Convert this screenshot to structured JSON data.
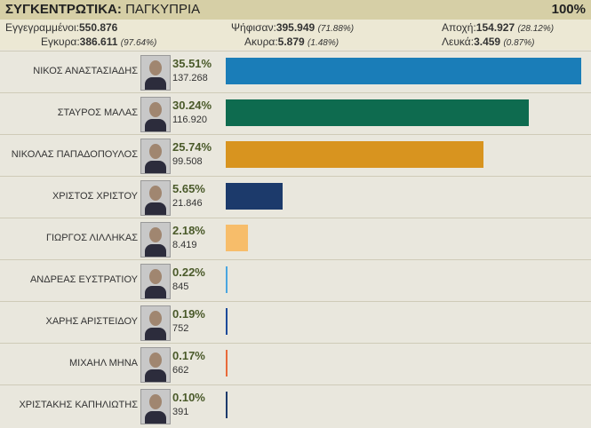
{
  "header": {
    "label": "ΣΥΓΚΕΝΤΡΩΤΙΚΑ:",
    "region": "ΠΑΓΚΥΠΡΙΑ",
    "progress": "100%"
  },
  "stats": {
    "registered_label": "Εγγεγραμμένοι:",
    "registered": "550.876",
    "voted_label": "Ψήφισαν:",
    "voted": "395.949",
    "voted_pct": "(71.88%)",
    "abstention_label": "Αποχή:",
    "abstention": "154.927",
    "abstention_pct": "(28.12%)",
    "valid_label": "Εγκυρα:",
    "valid": "386.611",
    "valid_pct": "(97.64%)",
    "invalid_label": "Ακυρα:",
    "invalid": "5.879",
    "invalid_pct": "(1.48%)",
    "blank_label": "Λευκά:",
    "blank": "3.459",
    "blank_pct": "(0.87%)"
  },
  "candidates": [
    {
      "name": "ΝΙΚΟΣ ΑΝΑΣΤΑΣΙΑΔΗΣ",
      "pct": "35.51%",
      "votes": "137.268",
      "share": 35.51,
      "color": "#1a7db8"
    },
    {
      "name": "ΣΤΑΥΡΟΣ ΜΑΛΑΣ",
      "pct": "30.24%",
      "votes": "116.920",
      "share": 30.24,
      "color": "#0e6b4f"
    },
    {
      "name": "ΝΙΚΟΛΑΣ ΠΑΠΑΔΟΠΟΥΛΟΣ",
      "pct": "25.74%",
      "votes": "99.508",
      "share": 25.74,
      "color": "#d8941f"
    },
    {
      "name": "ΧΡΙΣΤΟΣ ΧΡΙΣΤΟΥ",
      "pct": "5.65%",
      "votes": "21.846",
      "share": 5.65,
      "color": "#1c3a6b"
    },
    {
      "name": "ΓΙΩΡΓΟΣ ΛΙΛΛΗΚΑΣ",
      "pct": "2.18%",
      "votes": "8.419",
      "share": 2.18,
      "color": "#f7bd6a"
    },
    {
      "name": "ΑΝΔΡΕΑΣ ΕΥΣΤΡΑΤΙΟΥ",
      "pct": "0.22%",
      "votes": "845",
      "share": 0.22,
      "color": "#4aa6e0"
    },
    {
      "name": "ΧΑΡΗΣ ΑΡΙΣΤΕΙΔΟΥ",
      "pct": "0.19%",
      "votes": "752",
      "share": 0.19,
      "color": "#1c4a9a"
    },
    {
      "name": "ΜΙΧΑΗΛ ΜΗΝΑ",
      "pct": "0.17%",
      "votes": "662",
      "share": 0.17,
      "color": "#e86a3a"
    },
    {
      "name": "ΧΡΙΣΤΑΚΗΣ ΚΑΠΗΛΙΩΤΗΣ",
      "pct": "0.10%",
      "votes": "391",
      "share": 0.1,
      "color": "#1c3a6b"
    }
  ]
}
